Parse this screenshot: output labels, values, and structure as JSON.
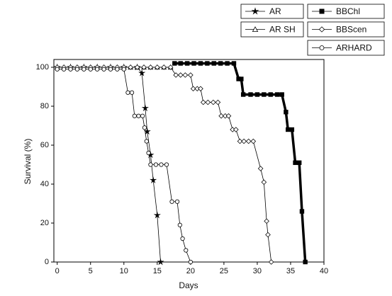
{
  "chart_data": {
    "type": "line",
    "x_label": "Days",
    "y_label": "Survival (%)",
    "xlim": [
      -0.5,
      40
    ],
    "ylim": [
      0,
      104
    ],
    "xticks": [
      0,
      5,
      10,
      15,
      20,
      25,
      30,
      35,
      40
    ],
    "yticks": [
      0,
      20,
      40,
      60,
      80,
      100
    ],
    "series": [
      {
        "name": "AR",
        "color": "#000000",
        "marker": "star",
        "x": [
          0,
          2,
          4,
          6,
          8,
          10,
          12,
          12.7,
          13.2,
          13.5,
          14.0,
          14.4,
          15.0,
          15.5
        ],
        "values": [
          100,
          100,
          100,
          100,
          100,
          100,
          100,
          97,
          79,
          67,
          55,
          42,
          24,
          0
        ]
      },
      {
        "name": "BBChl",
        "color": "#000000",
        "marker": "square",
        "x": [
          17.6,
          18.5,
          19.5,
          20.5,
          21.5,
          22.5,
          23.5,
          24.5,
          25.5,
          26.5,
          27.2,
          27.6,
          27.9,
          29,
          30,
          31,
          32,
          33,
          33.7,
          34.3,
          34.6,
          35.2,
          35.7,
          36.3,
          36.7,
          37.2
        ],
        "values": [
          102,
          102,
          102,
          102,
          102,
          102,
          102,
          102,
          102,
          102,
          94,
          94,
          86,
          86,
          86,
          86,
          86,
          86,
          86,
          77,
          68,
          68,
          51,
          51,
          26,
          0
        ]
      },
      {
        "name": "AR SH",
        "color": "#000000",
        "marker": "triangle",
        "x": [
          0,
          1,
          2,
          3,
          4,
          5,
          6,
          7,
          8,
          9,
          10,
          11,
          12,
          13,
          14,
          15,
          16,
          17
        ],
        "values": [
          100,
          100,
          100,
          100,
          100,
          100,
          100,
          100,
          100,
          100,
          100,
          100,
          100,
          100,
          100,
          100,
          100,
          100
        ]
      },
      {
        "name": "BBScen",
        "color": "#000000",
        "marker": "diamond",
        "x": [
          0,
          1,
          2,
          3,
          4,
          5,
          6,
          7,
          8,
          9,
          10,
          11,
          12,
          13,
          14,
          15,
          16,
          17,
          17.8,
          18.5,
          19.2,
          20,
          20.4,
          21,
          21.5,
          21.9,
          22.6,
          23.4,
          24.1,
          24.6,
          25.2,
          25.7,
          26.3,
          26.8,
          27.4,
          28,
          28.7,
          29.4,
          30.5,
          31,
          31.4,
          31.6,
          32.1
        ],
        "values": [
          100,
          100,
          100,
          100,
          100,
          100,
          100,
          100,
          100,
          100,
          100,
          100,
          100,
          100,
          100,
          100,
          100,
          100,
          96,
          96,
          96,
          96,
          89,
          89,
          89,
          82,
          82,
          82,
          82,
          75,
          75,
          75,
          68,
          68,
          62,
          62,
          62,
          62,
          48,
          41,
          21,
          14,
          0
        ]
      },
      {
        "name": "ARHARD",
        "color": "#000000",
        "marker": "circle",
        "x": [
          0,
          1,
          2,
          3,
          4,
          5,
          6,
          7,
          8,
          9,
          10,
          10.6,
          11.2,
          11.6,
          12.2,
          12.8,
          13.1,
          13.4,
          13.7,
          14,
          14.8,
          15.6,
          16.4,
          17.2,
          18,
          18.4,
          18.8,
          19.3,
          20
        ],
        "values": [
          99,
          99,
          99,
          99,
          99,
          99,
          99,
          99,
          99,
          99,
          99,
          87,
          87,
          75,
          75,
          75,
          69,
          62,
          56,
          50,
          50,
          50,
          50,
          31,
          31,
          19,
          12,
          6,
          0
        ]
      }
    ]
  }
}
